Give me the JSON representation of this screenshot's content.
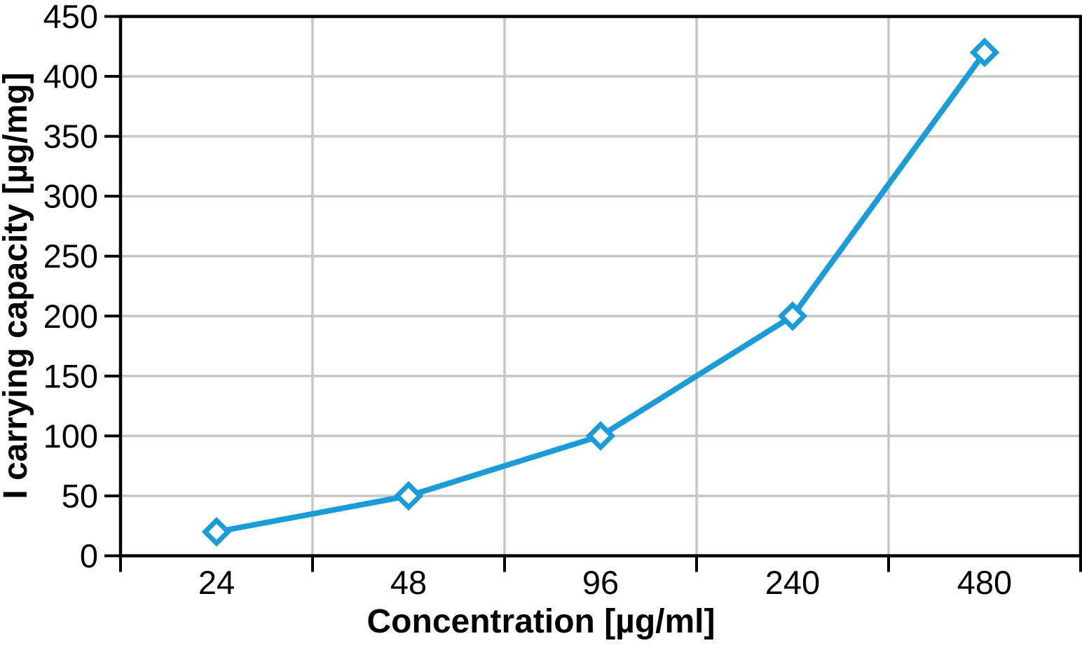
{
  "chart_data": {
    "type": "line",
    "title": "",
    "xlabel": "Concentration [µg/ml]",
    "ylabel": "I carrying capacity [µg/mg]",
    "categories": [
      "24",
      "48",
      "96",
      "240",
      "480"
    ],
    "values": [
      20,
      50,
      100,
      200,
      420
    ],
    "ylim": [
      0,
      450
    ],
    "ytick_step": 50,
    "ytick_labels": [
      "0",
      "50",
      "100",
      "150",
      "200",
      "250",
      "300",
      "350",
      "400",
      "450"
    ],
    "grid": true,
    "legend": "none",
    "marker": "open-diamond",
    "colors": {
      "line": "#1A9CD9",
      "marker_fill": "#FFFFFF",
      "grid": "#C6C6C6",
      "axis": "#000000",
      "text": "#000000",
      "background": "#FFFFFF"
    }
  }
}
